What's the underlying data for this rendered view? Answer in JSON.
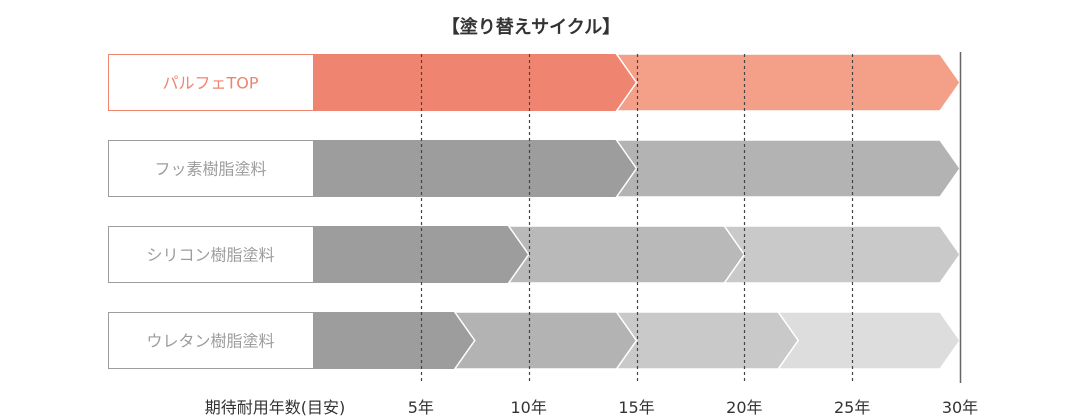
{
  "chart_data": {
    "type": "bar",
    "title": "【塗り替えサイクル】",
    "x_caption": "期待耐用年数(目安)",
    "x_unit": "年",
    "xlim": [
      0,
      30
    ],
    "gridlines": [
      5,
      10,
      15,
      20,
      25
    ],
    "ticks": [
      {
        "value": 5,
        "label": "5年"
      },
      {
        "value": 10,
        "label": "10年"
      },
      {
        "value": 15,
        "label": "15年"
      },
      {
        "value": 20,
        "label": "20年"
      },
      {
        "value": 25,
        "label": "25年"
      },
      {
        "value": 30,
        "label": "30年"
      }
    ],
    "series": [
      {
        "name": "パルフェTOP",
        "highlight": true,
        "segments": [
          {
            "start": 0,
            "end": 15,
            "color": "#ef8570"
          },
          {
            "start": 15,
            "end": 30,
            "color": "#f4a089"
          }
        ]
      },
      {
        "name": "フッ素樹脂塗料",
        "highlight": false,
        "segments": [
          {
            "start": 0,
            "end": 15,
            "color": "#9c9d9c"
          },
          {
            "start": 15,
            "end": 30,
            "color": "#b2b3b2"
          }
        ]
      },
      {
        "name": "シリコン樹脂塗料",
        "highlight": false,
        "segments": [
          {
            "start": 0,
            "end": 10,
            "color": "#9c9d9c"
          },
          {
            "start": 10,
            "end": 20,
            "color": "#b8b9b8"
          },
          {
            "start": 20,
            "end": 30,
            "color": "#c8c9c8"
          }
        ]
      },
      {
        "name": "ウレタン樹脂塗料",
        "highlight": false,
        "segments": [
          {
            "start": 0,
            "end": 7.5,
            "color": "#9c9d9c"
          },
          {
            "start": 7.5,
            "end": 15,
            "color": "#b2b3b2"
          },
          {
            "start": 15,
            "end": 22.5,
            "color": "#c8c9c8"
          },
          {
            "start": 22.5,
            "end": 30,
            "color": "#dcdddc"
          }
        ]
      }
    ],
    "colors": {
      "highlight_border": "#ef8570",
      "highlight_text": "#ef8570",
      "label_border": "#9c9d9c",
      "label_text": "#9c9d9c",
      "axis_text": "#333333",
      "title_text": "#333333",
      "gridline": "#444444"
    }
  }
}
